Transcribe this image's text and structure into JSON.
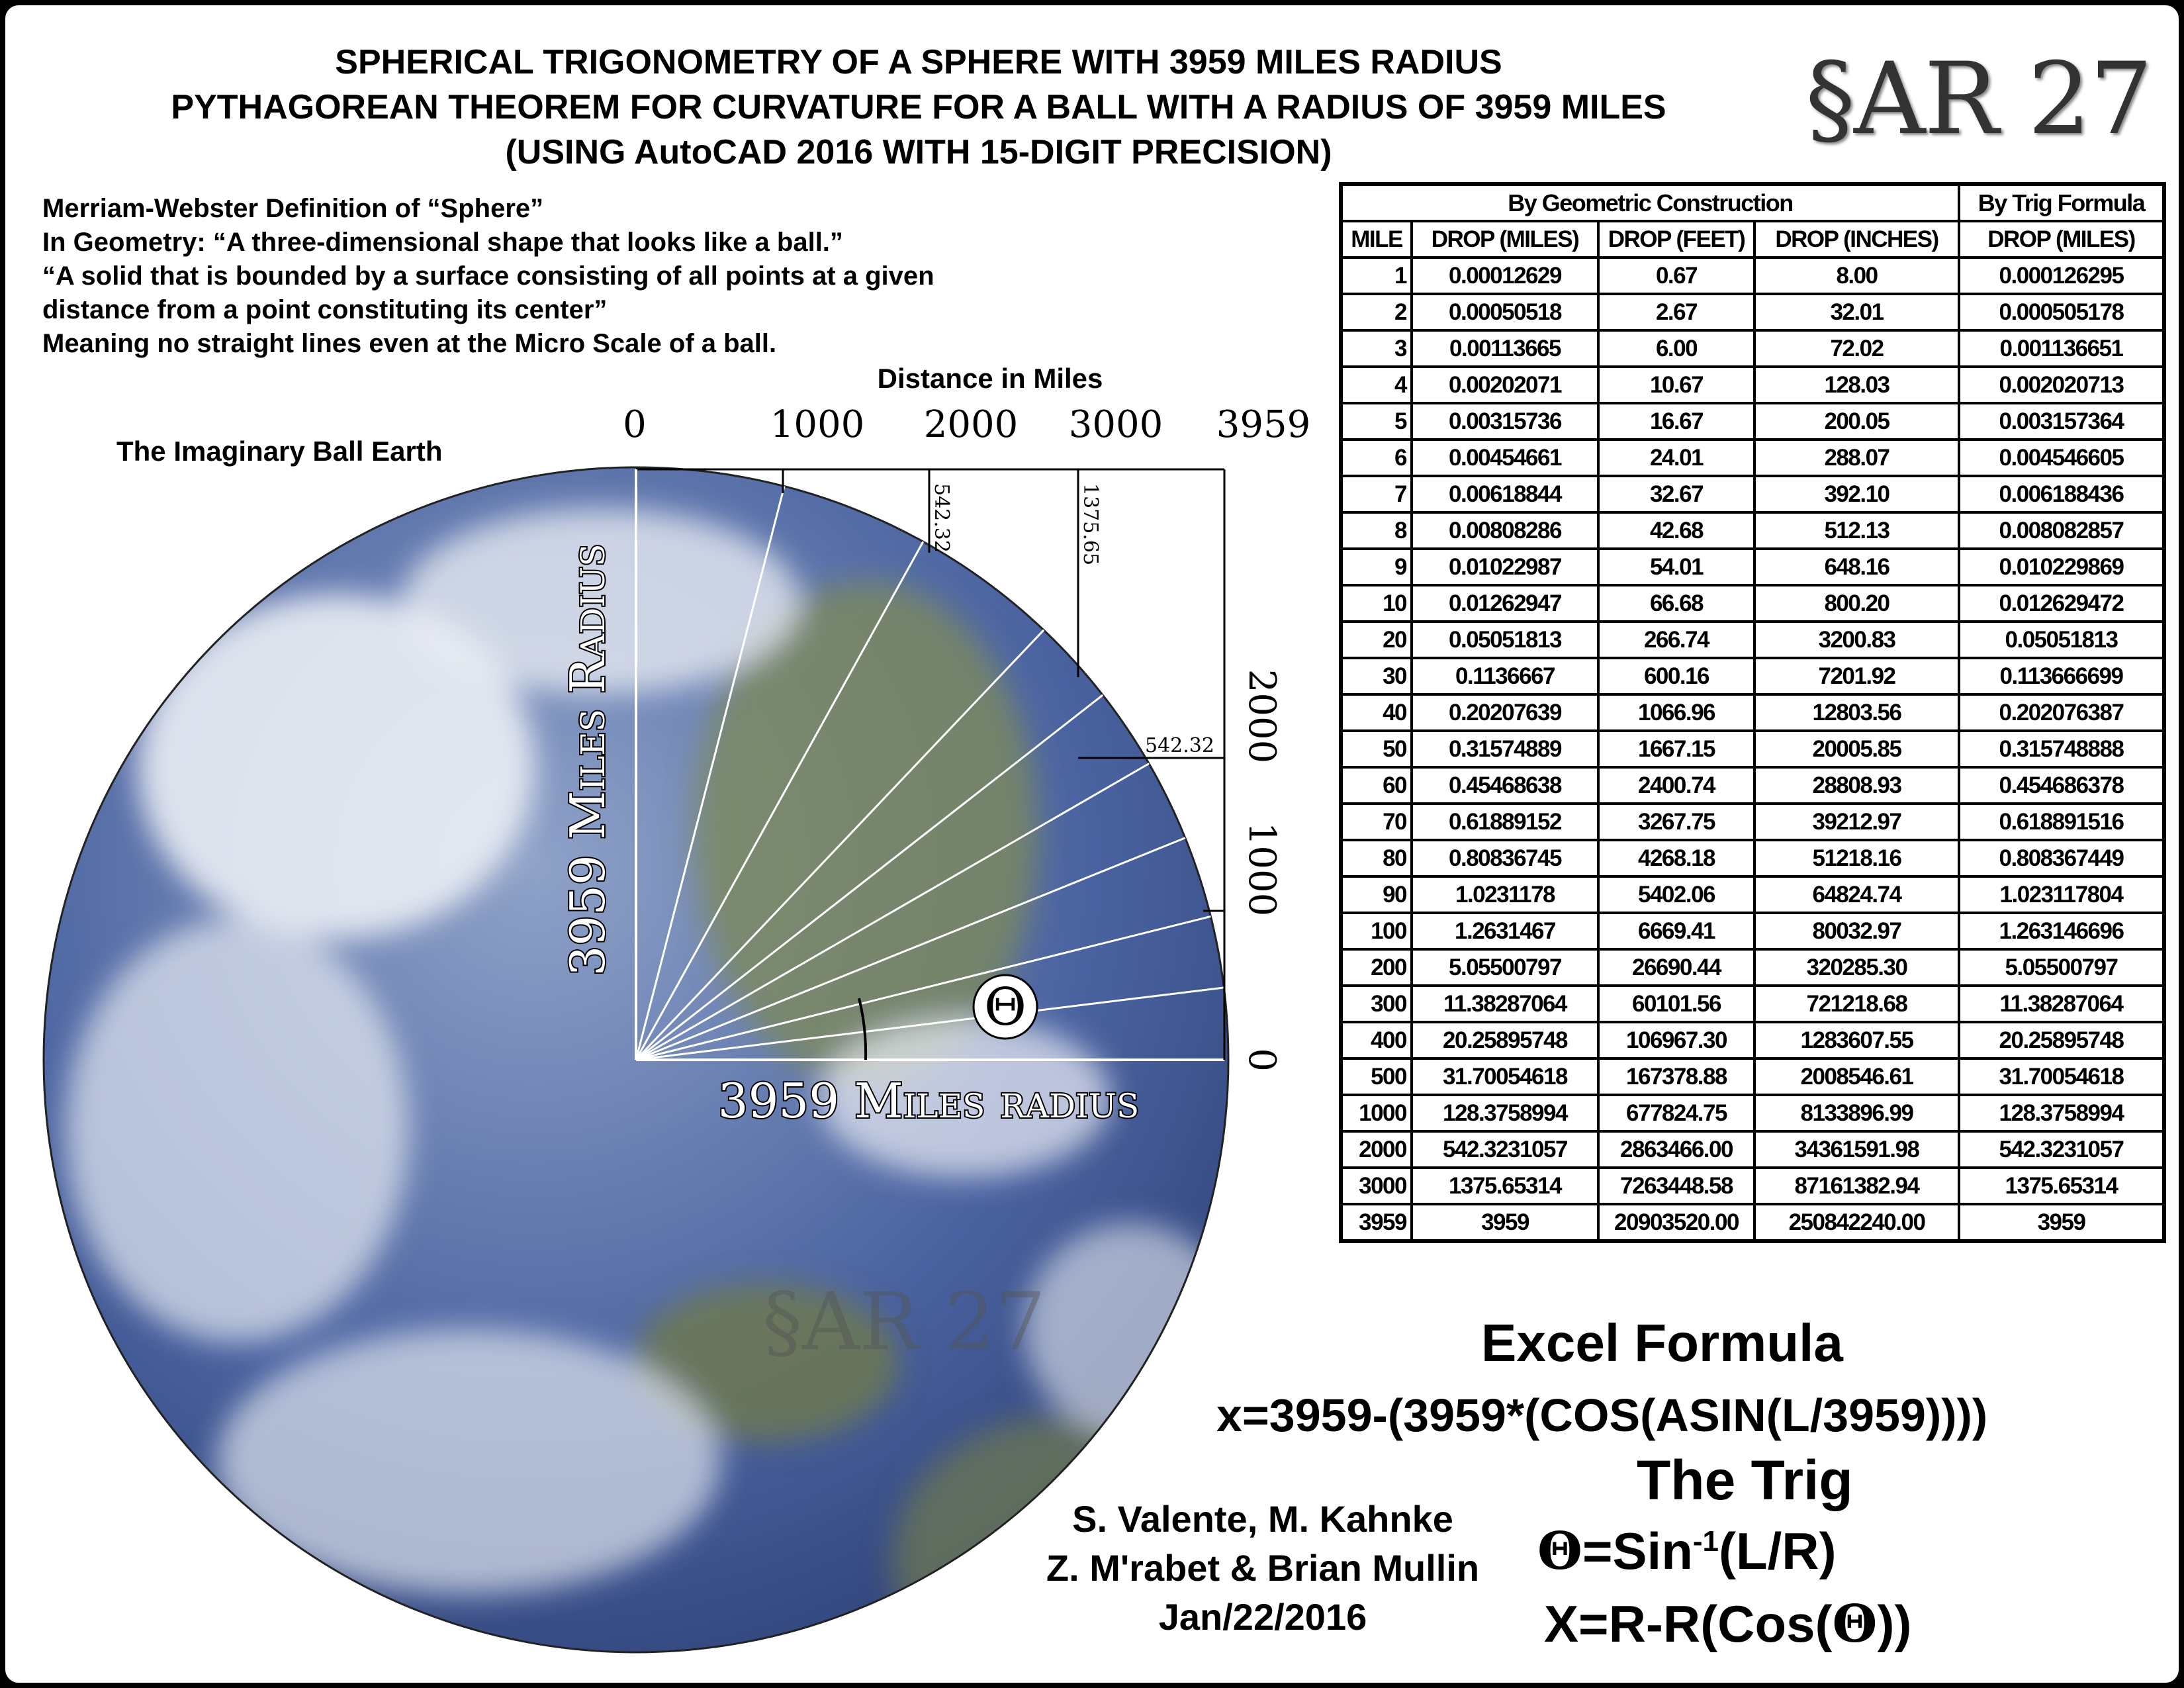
{
  "title": {
    "line1": "SPHERICAL TRIGONOMETRY OF A SPHERE WITH 3959 MILES RADIUS",
    "line2": "PYTHAGOREAN THEOREM FOR CURVATURE FOR A BALL WITH A RADIUS OF 3959 MILES",
    "line3": "(USING AutoCAD 2016 WITH 15-DIGIT PRECISION)"
  },
  "logo": "§AR 27",
  "definition": [
    "Merriam-Webster Definition of “Sphere”",
    "In Geometry: “A three-dimensional shape that looks like a ball.”",
    "“A solid that is bounded by a surface consisting of all points at a given",
    "distance from a point constituting its center”",
    "Meaning no straight lines even at the Micro Scale of a ball."
  ],
  "diagram": {
    "earth_label": "The Imaginary Ball Earth",
    "top_axis_title": "Distance in Miles",
    "top_ticks": [
      "0",
      "1000",
      "2000",
      "3000",
      "3959"
    ],
    "right_ticks": [
      "2000",
      "1000",
      "0"
    ],
    "vertical_radius_label": "3959 Miles Radius",
    "horizontal_radius_label": "3959 Miles radius",
    "drop_label_2000_vertical": "542.32",
    "drop_label_3000_vertical": "1375.65",
    "drop_label_2000_horizontal": "542.32",
    "theta": "Θ",
    "watermark": "§AR 27",
    "colors": {
      "ocean": "#3d5590",
      "clouds": "#f2f4f8",
      "land": "#6f7a4e"
    }
  },
  "table": {
    "group_headers": [
      "By Geometric Construction",
      "By Trig Formula"
    ],
    "columns": [
      "MILE",
      "DROP (MILES)",
      "DROP (FEET)",
      "DROP (INCHES)",
      "DROP (MILES)"
    ],
    "rows": [
      [
        "1",
        "0.00012629",
        "0.67",
        "8.00",
        "0.000126295"
      ],
      [
        "2",
        "0.00050518",
        "2.67",
        "32.01",
        "0.000505178"
      ],
      [
        "3",
        "0.00113665",
        "6.00",
        "72.02",
        "0.001136651"
      ],
      [
        "4",
        "0.00202071",
        "10.67",
        "128.03",
        "0.002020713"
      ],
      [
        "5",
        "0.00315736",
        "16.67",
        "200.05",
        "0.003157364"
      ],
      [
        "6",
        "0.00454661",
        "24.01",
        "288.07",
        "0.004546605"
      ],
      [
        "7",
        "0.00618844",
        "32.67",
        "392.10",
        "0.006188436"
      ],
      [
        "8",
        "0.00808286",
        "42.68",
        "512.13",
        "0.008082857"
      ],
      [
        "9",
        "0.01022987",
        "54.01",
        "648.16",
        "0.010229869"
      ],
      [
        "10",
        "0.01262947",
        "66.68",
        "800.20",
        "0.012629472"
      ],
      [
        "20",
        "0.05051813",
        "266.74",
        "3200.83",
        "0.05051813"
      ],
      [
        "30",
        "0.1136667",
        "600.16",
        "7201.92",
        "0.113666699"
      ],
      [
        "40",
        "0.20207639",
        "1066.96",
        "12803.56",
        "0.202076387"
      ],
      [
        "50",
        "0.31574889",
        "1667.15",
        "20005.85",
        "0.315748888"
      ],
      [
        "60",
        "0.45468638",
        "2400.74",
        "28808.93",
        "0.454686378"
      ],
      [
        "70",
        "0.61889152",
        "3267.75",
        "39212.97",
        "0.618891516"
      ],
      [
        "80",
        "0.80836745",
        "4268.18",
        "51218.16",
        "0.808367449"
      ],
      [
        "90",
        "1.0231178",
        "5402.06",
        "64824.74",
        "1.023117804"
      ],
      [
        "100",
        "1.2631467",
        "6669.41",
        "80032.97",
        "1.263146696"
      ],
      [
        "200",
        "5.05500797",
        "26690.44",
        "320285.30",
        "5.05500797"
      ],
      [
        "300",
        "11.38287064",
        "60101.56",
        "721218.68",
        "11.38287064"
      ],
      [
        "400",
        "20.25895748",
        "106967.30",
        "1283607.55",
        "20.25895748"
      ],
      [
        "500",
        "31.70054618",
        "167378.88",
        "2008546.61",
        "31.70054618"
      ],
      [
        "1000",
        "128.3758994",
        "677824.75",
        "8133896.99",
        "128.3758994"
      ],
      [
        "2000",
        "542.3231057",
        "2863466.00",
        "34361591.98",
        "542.3231057"
      ],
      [
        "3000",
        "1375.65314",
        "7263448.58",
        "87161382.94",
        "1375.65314"
      ],
      [
        "3959",
        "3959",
        "20903520.00",
        "250842240.00",
        "3959"
      ]
    ]
  },
  "formulas": {
    "excel_title": "Excel Formula",
    "excel": "x=3959-(3959*(COS(ASIN(L/3959))))",
    "trig_title": "The Trig",
    "theta_symbol": "Θ",
    "theta_eq_prefix": "=Sin",
    "theta_eq_sup": "-1",
    "theta_eq_suffix": "(L/R)",
    "x_eq_prefix": "X=R-R(Cos(",
    "x_eq_suffix": "))"
  },
  "authors": [
    "S. Valente, M. Kahnke",
    "Z. M'rabet & Brian Mullin",
    "Jan/22/2016"
  ]
}
